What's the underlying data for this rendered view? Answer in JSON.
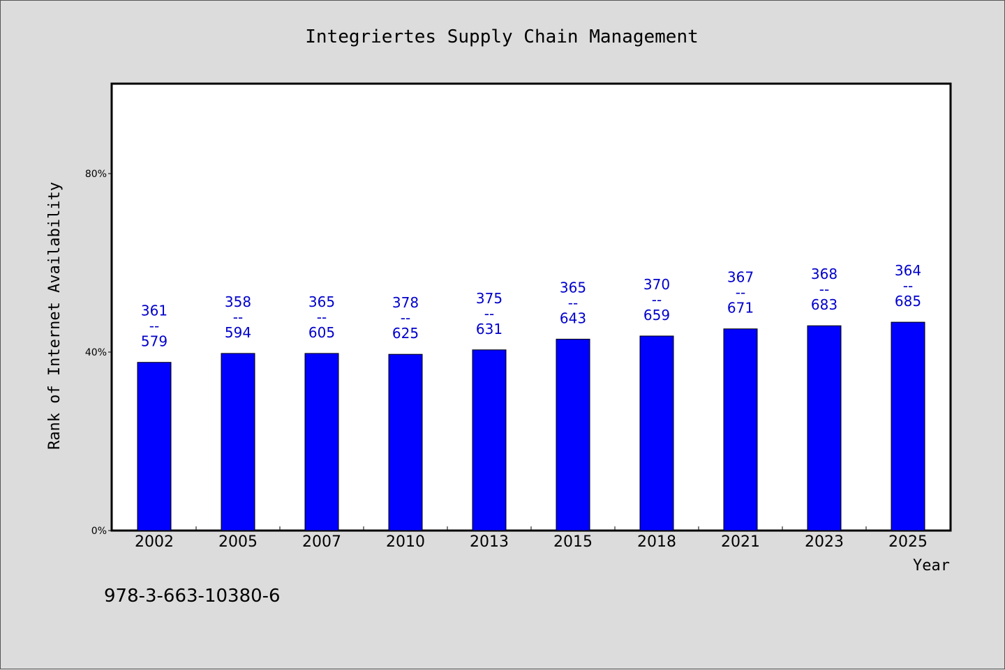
{
  "chart_data": {
    "type": "bar",
    "title": "Integriertes Supply Chain Management",
    "xlabel": "Year",
    "ylabel": "Rank of Internet Availability",
    "categories": [
      "2002",
      "2005",
      "2007",
      "2010",
      "2013",
      "2015",
      "2018",
      "2021",
      "2023",
      "2025"
    ],
    "values": [
      37.7,
      39.7,
      39.7,
      39.5,
      40.5,
      42.9,
      43.6,
      45.2,
      45.9,
      46.7
    ],
    "value_unit": "%",
    "ylim": [
      0,
      100
    ],
    "yticks": [
      {
        "value": 0,
        "label": "0%"
      },
      {
        "value": 40,
        "label": "40%"
      },
      {
        "value": 80,
        "label": "80%"
      }
    ],
    "data_labels": [
      {
        "top": "361",
        "sep": "--",
        "bottom": "579"
      },
      {
        "top": "358",
        "sep": "--",
        "bottom": "594"
      },
      {
        "top": "365",
        "sep": "--",
        "bottom": "605"
      },
      {
        "top": "378",
        "sep": "--",
        "bottom": "625"
      },
      {
        "top": "375",
        "sep": "--",
        "bottom": "631"
      },
      {
        "top": "365",
        "sep": "--",
        "bottom": "643"
      },
      {
        "top": "370",
        "sep": "--",
        "bottom": "659"
      },
      {
        "top": "367",
        "sep": "--",
        "bottom": "671"
      },
      {
        "top": "368",
        "sep": "--",
        "bottom": "683"
      },
      {
        "top": "364",
        "sep": "--",
        "bottom": "685"
      }
    ],
    "bar_color": "#0000ff",
    "label_color": "#0000cc",
    "plot_background": "#ffffff",
    "page_background": "#dcdcdc",
    "grid": false,
    "legend": "none"
  },
  "footnote": "978-3-663-10380-6"
}
